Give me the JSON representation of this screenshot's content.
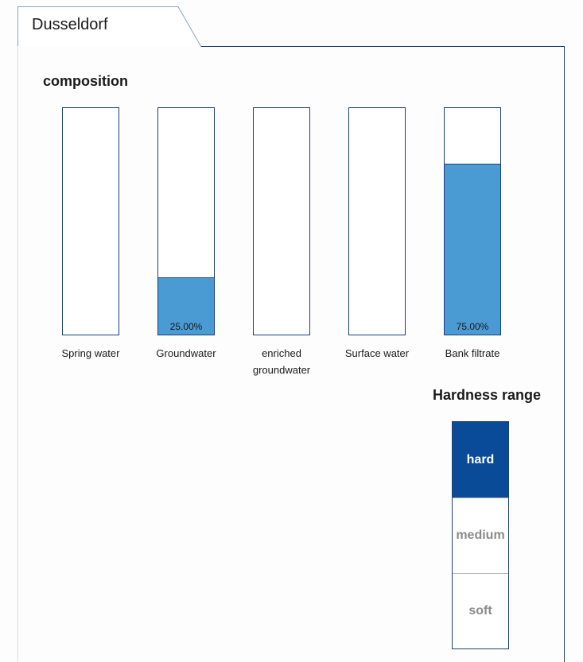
{
  "window": {
    "tab_title": "Dusseldorf"
  },
  "composition": {
    "title": "composition",
    "fill_color": "#4a9ad4",
    "border_color": "#1c3f78",
    "bars": [
      {
        "label": "Spring water",
        "percent": 0,
        "value_label": ""
      },
      {
        "label": "Groundwater",
        "percent": 25,
        "value_label": "25.00%"
      },
      {
        "label": "enriched groundwater",
        "percent": 0,
        "value_label": ""
      },
      {
        "label": "Surface water",
        "percent": 0,
        "value_label": ""
      },
      {
        "label": "Bank filtrate",
        "percent": 75,
        "value_label": "75.00%"
      }
    ]
  },
  "hardness": {
    "title": "Hardness range",
    "active_color": "#0a4b98",
    "levels": [
      {
        "label": "hard",
        "active": true
      },
      {
        "label": "medium",
        "active": false
      },
      {
        "label": "soft",
        "active": false
      }
    ]
  }
}
